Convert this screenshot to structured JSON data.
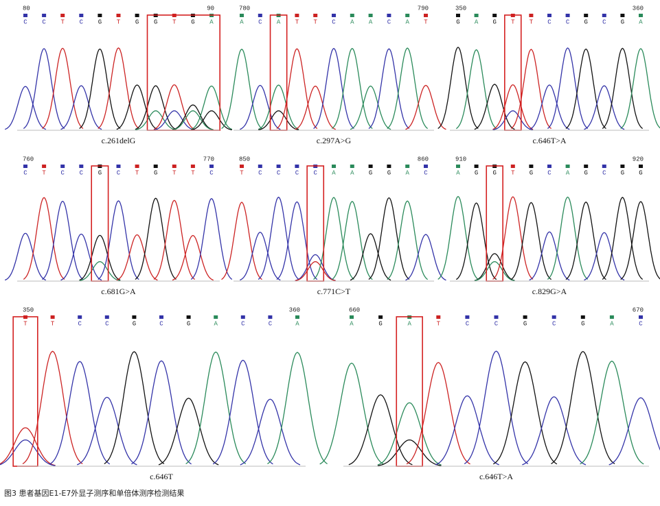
{
  "panels": [
    {
      "start": 80,
      "end": 90,
      "bases": [
        "C",
        "C",
        "T",
        "C",
        "G",
        "T",
        "G",
        "G",
        "T",
        "G",
        "A"
      ],
      "label": "c.261delG"
    },
    {
      "start": 780,
      "end": 790,
      "bases": [
        "A",
        "C",
        "A",
        "T",
        "T",
        "C",
        "A",
        "A",
        "C",
        "A",
        "T"
      ],
      "label": "c.297A>G"
    },
    {
      "start": 350,
      "end": 360,
      "bases": [
        "G",
        "A",
        "G",
        "T",
        "T",
        "C",
        "C",
        "G",
        "C",
        "G",
        "A"
      ],
      "label": "c.646T>A"
    },
    {
      "start": 760,
      "end": 770,
      "bases": [
        "C",
        "T",
        "C",
        "C",
        "G",
        "C",
        "T",
        "G",
        "T",
        "T",
        "C"
      ],
      "label": "c.681G>A"
    },
    {
      "start": 850,
      "end": 860,
      "bases": [
        "T",
        "C",
        "C",
        "C",
        "C",
        "A",
        "A",
        "G",
        "G",
        "A",
        "C"
      ],
      "label": "c.771C>T"
    },
    {
      "start": 910,
      "end": 920,
      "bases": [
        "A",
        "G",
        "G",
        "T",
        "G",
        "C",
        "A",
        "G",
        "C",
        "G",
        "G"
      ],
      "label": "c.829G>A"
    },
    {
      "start": 350,
      "end": 360,
      "bases": [
        "T",
        "T",
        "C",
        "C",
        "G",
        "C",
        "G",
        "A",
        "C",
        "C",
        "A"
      ],
      "label": "c.646T"
    },
    {
      "start": 660,
      "end": 670,
      "bases": [
        "A",
        "G",
        "A",
        "T",
        "C",
        "C",
        "G",
        "C",
        "G",
        "A",
        "C"
      ],
      "label": "c.646T>A"
    }
  ],
  "caption": "图3  患者基因E1-E7外显子测序和单倍体测序检测结果"
}
